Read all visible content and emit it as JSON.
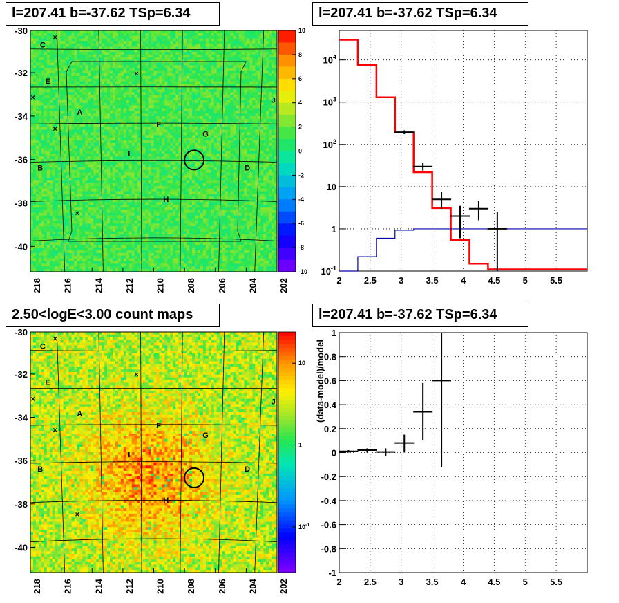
{
  "titles": {
    "top_left": "l=207.41 b=-37.62 TSp=6.34",
    "top_right": "l=207.41 b=-37.62 TSp=6.34",
    "bottom_left": "2.50<logE<3.00 count maps",
    "bottom_right": "l=207.41 b=-37.62 TSp=6.34"
  },
  "colors": {
    "model_red": "#ff0000",
    "model_blue": "#0000aa",
    "data_black": "#000000",
    "grid_dotted": "#000000"
  },
  "chart_data": [
    {
      "type": "heatmap",
      "title": "l=207.41 b=-37.62 TSp=6.34",
      "x_ticks": [
        "218",
        "216",
        "214",
        "212",
        "210",
        "208",
        "206",
        "204",
        "202"
      ],
      "y_ticks": [
        "-30",
        "-32",
        "-34",
        "-36",
        "-38",
        "-40"
      ],
      "colorbar_ticks": [
        "10",
        "8",
        "6",
        "4",
        "2",
        "0",
        "-2",
        "-4",
        "-6",
        "-8",
        "-10"
      ],
      "colorbar_range": [
        -10,
        10
      ],
      "region_labels": [
        "C",
        "E",
        "A",
        "F",
        "G",
        "I",
        "B",
        "H",
        "D",
        "J"
      ]
    },
    {
      "type": "line",
      "title": "l=207.41 b=-37.62 TSp=6.34",
      "y_scale": "log",
      "xlim": [
        2,
        6
      ],
      "ylim": [
        0.1,
        50000
      ],
      "x_ticks": [
        "2",
        "2.5",
        "3",
        "3.5",
        "4",
        "4.5",
        "5",
        "5.5"
      ],
      "y_ticks": [
        "10^-1",
        "1",
        "10",
        "10^2",
        "10^3",
        "10^4"
      ],
      "series": [
        {
          "color": "#ff0000",
          "step_edges": [
            2.0,
            2.3,
            2.6,
            2.9,
            3.2,
            3.5,
            3.8,
            4.1,
            4.4,
            6.0
          ],
          "values": [
            30000,
            7500,
            1300,
            190,
            22,
            3.1,
            0.55,
            0.15,
            0.11
          ]
        },
        {
          "color": "#0000aa",
          "step_edges": [
            2.0,
            2.3,
            2.6,
            2.9,
            3.2,
            6.0
          ],
          "values": [
            0.1,
            0.22,
            0.6,
            0.93,
            1.0
          ]
        },
        {
          "color": "#000000",
          "points": [
            {
              "x": 3.05,
              "y": 195,
              "ylo": 175,
              "yhi": 215
            },
            {
              "x": 3.35,
              "y": 30,
              "ylo": 24,
              "yhi": 36
            },
            {
              "x": 3.65,
              "y": 5,
              "ylo": 3,
              "yhi": 7.5
            },
            {
              "x": 3.95,
              "y": 2,
              "ylo": 0.6,
              "yhi": 3.5
            },
            {
              "x": 4.25,
              "y": 3,
              "ylo": 1.6,
              "yhi": 4.6
            },
            {
              "x": 4.55,
              "y": 1,
              "ylo": 0.1,
              "yhi": 2.5
            }
          ]
        }
      ]
    },
    {
      "type": "heatmap",
      "title": "2.50<logE<3.00 count maps",
      "x_ticks": [
        "218",
        "216",
        "214",
        "212",
        "210",
        "208",
        "206",
        "204",
        "202"
      ],
      "y_ticks": [
        "-30",
        "-32",
        "-34",
        "-36",
        "-38",
        "-40"
      ],
      "colorbar_ticks": [
        "10",
        "1",
        "10^-1"
      ],
      "colorbar_scale": "log",
      "region_labels": [
        "C",
        "E",
        "A",
        "F",
        "G",
        "I",
        "B",
        "H",
        "D",
        "J"
      ]
    },
    {
      "type": "scatter",
      "title": "l=207.41 b=-37.62 TSp=6.34",
      "ylabel": "(data-model)/model",
      "xlim": [
        2,
        6
      ],
      "ylim": [
        -1,
        1
      ],
      "x_ticks": [
        "2",
        "2.5",
        "3",
        "3.5",
        "4",
        "4.5",
        "5",
        "5.5"
      ],
      "y_ticks": [
        "1",
        "0.8",
        "0.6",
        "0.4",
        "0.2",
        "0",
        "-0.2",
        "-0.4",
        "-0.6",
        "-0.8",
        "-1"
      ],
      "points": [
        {
          "x": 2.15,
          "y": 0.01,
          "ylo": 0.0,
          "yhi": 0.02
        },
        {
          "x": 2.45,
          "y": 0.02,
          "ylo": 0.0,
          "yhi": 0.035
        },
        {
          "x": 2.75,
          "y": 0.005,
          "ylo": -0.03,
          "yhi": 0.035
        },
        {
          "x": 3.05,
          "y": 0.08,
          "ylo": 0.0,
          "yhi": 0.15
        },
        {
          "x": 3.35,
          "y": 0.34,
          "ylo": 0.1,
          "yhi": 0.58
        },
        {
          "x": 3.65,
          "y": 0.6,
          "ylo": -0.12,
          "yhi": 1.0
        }
      ]
    }
  ]
}
